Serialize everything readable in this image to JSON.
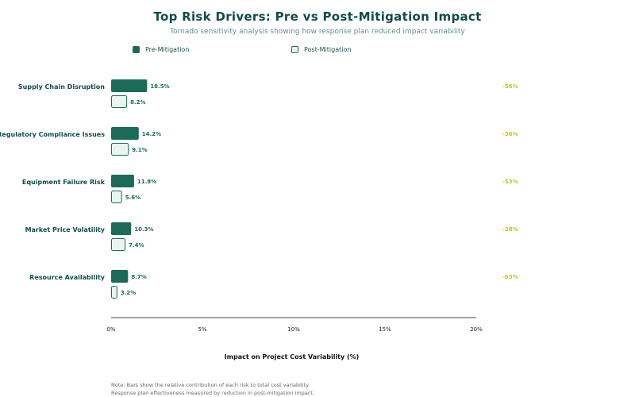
{
  "header": {
    "title": "Top Risk Drivers: Pre vs Post-Mitigation Impact",
    "subtitle": "Tornado sensitivity analysis showing how response plan reduced impact variability"
  },
  "legend": {
    "pre_label": "Pre-Mitigation",
    "post_label": "Post-Mitigation"
  },
  "notes": {
    "line1": "Note: Bars show the relative contribution of each risk to total cost variability.",
    "line2": "Response plan effectiveness measured by reduction in post-mitigation impact."
  },
  "colors": {
    "pre_fill": "#1b6b58",
    "post_fill": "#e8f6ef",
    "post_stroke": "#1b6b58",
    "value_label": "#1b6b58",
    "category_label": "#0f4c4c",
    "reduction_label": "#c9c221"
  },
  "chart_data": {
    "type": "bar",
    "orientation": "horizontal",
    "title": "Top Risk Drivers: Pre vs Post-Mitigation Impact",
    "subtitle": "Tornado sensitivity analysis showing how response plan reduced impact variability",
    "xlabel": "Impact on Project Cost Variability (%)",
    "ylabel": "",
    "categories": [
      "Supply Chain Disruption",
      "Regulatory Compliance Issues",
      "Equipment Failure Risk",
      "Market Price Volatility",
      "Resource Availability"
    ],
    "series": [
      {
        "name": "Pre-Mitigation",
        "values": [
          18.5,
          14.2,
          11.8,
          10.3,
          8.7
        ],
        "labels": [
          "18.5%",
          "14.2%",
          "11.8%",
          "10.3%",
          "8.7%"
        ]
      },
      {
        "name": "Post-Mitigation",
        "values": [
          8.2,
          9.1,
          5.6,
          7.4,
          3.2
        ],
        "labels": [
          "8.2%",
          "9.1%",
          "5.6%",
          "7.4%",
          "3.2%"
        ]
      }
    ],
    "reductions": [
      "-56%",
      "-36%",
      "-53%",
      "-28%",
      "-63%"
    ],
    "x_ticks": [
      0,
      5,
      10,
      15,
      20
    ],
    "x_tick_labels": [
      "0%",
      "5%",
      "10%",
      "15%",
      "20%"
    ],
    "xlim": [
      0,
      20
    ],
    "bar_scale_max": 100,
    "legend_position": "top-left",
    "grid": false
  }
}
